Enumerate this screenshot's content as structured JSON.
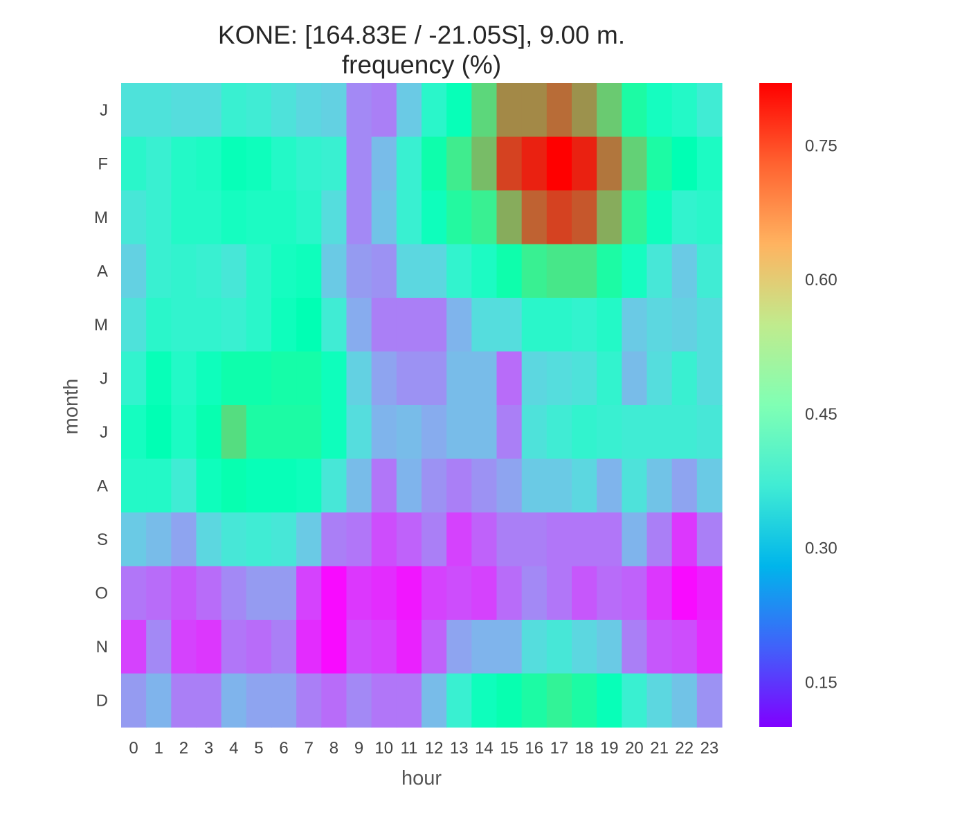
{
  "chart_data": {
    "type": "heatmap",
    "title": "KONE: [164.83E / -21.05S], 9.00 m.",
    "subtitle": "frequency (%)",
    "xlabel": "hour",
    "ylabel": "month",
    "x_categories": [
      "0",
      "1",
      "2",
      "3",
      "4",
      "5",
      "6",
      "7",
      "8",
      "9",
      "10",
      "11",
      "12",
      "13",
      "14",
      "15",
      "16",
      "17",
      "18",
      "19",
      "20",
      "21",
      "22",
      "23"
    ],
    "y_categories": [
      "J",
      "F",
      "M",
      "A",
      "M",
      "J",
      "J",
      "A",
      "S",
      "O",
      "N",
      "D"
    ],
    "colorbar": {
      "colormap": "rainbow",
      "range": [
        0.1,
        0.82
      ],
      "ticks": [
        0.15,
        0.3,
        0.45,
        0.6,
        0.75
      ],
      "tick_labels": [
        "0.15",
        "0.30",
        "0.45",
        "0.60",
        "0.75"
      ]
    },
    "values": [
      [
        0.35,
        0.35,
        0.34,
        0.34,
        0.38,
        0.37,
        0.35,
        0.33,
        0.32,
        0.23,
        0.22,
        0.31,
        0.4,
        0.45,
        0.59,
        0.69,
        0.69,
        0.72,
        0.68,
        0.61,
        0.5,
        0.43,
        0.41,
        0.37
      ],
      [
        0.4,
        0.38,
        0.41,
        0.42,
        0.45,
        0.44,
        0.41,
        0.39,
        0.38,
        0.23,
        0.29,
        0.38,
        0.48,
        0.55,
        0.63,
        0.76,
        0.79,
        0.82,
        0.79,
        0.71,
        0.6,
        0.5,
        0.46,
        0.42
      ],
      [
        0.36,
        0.38,
        0.41,
        0.41,
        0.43,
        0.42,
        0.42,
        0.4,
        0.34,
        0.23,
        0.3,
        0.38,
        0.44,
        0.51,
        0.54,
        0.65,
        0.73,
        0.76,
        0.74,
        0.65,
        0.53,
        0.44,
        0.39,
        0.4
      ],
      [
        0.32,
        0.38,
        0.39,
        0.38,
        0.36,
        0.4,
        0.43,
        0.44,
        0.31,
        0.25,
        0.24,
        0.33,
        0.33,
        0.39,
        0.42,
        0.48,
        0.54,
        0.56,
        0.56,
        0.5,
        0.43,
        0.36,
        0.31,
        0.37
      ],
      [
        0.35,
        0.4,
        0.39,
        0.39,
        0.38,
        0.4,
        0.44,
        0.46,
        0.37,
        0.27,
        0.22,
        0.22,
        0.22,
        0.28,
        0.34,
        0.34,
        0.4,
        0.4,
        0.39,
        0.41,
        0.31,
        0.33,
        0.32,
        0.34
      ],
      [
        0.39,
        0.45,
        0.41,
        0.44,
        0.48,
        0.48,
        0.49,
        0.49,
        0.44,
        0.32,
        0.26,
        0.24,
        0.24,
        0.29,
        0.29,
        0.2,
        0.33,
        0.34,
        0.35,
        0.39,
        0.29,
        0.34,
        0.38,
        0.34
      ],
      [
        0.43,
        0.46,
        0.42,
        0.47,
        0.58,
        0.5,
        0.5,
        0.5,
        0.44,
        0.34,
        0.28,
        0.29,
        0.27,
        0.29,
        0.29,
        0.22,
        0.35,
        0.37,
        0.39,
        0.38,
        0.37,
        0.37,
        0.37,
        0.36
      ],
      [
        0.41,
        0.41,
        0.37,
        0.44,
        0.47,
        0.45,
        0.45,
        0.44,
        0.36,
        0.29,
        0.21,
        0.28,
        0.24,
        0.22,
        0.24,
        0.26,
        0.31,
        0.31,
        0.33,
        0.28,
        0.35,
        0.3,
        0.26,
        0.31
      ],
      [
        0.31,
        0.29,
        0.26,
        0.33,
        0.36,
        0.37,
        0.36,
        0.31,
        0.22,
        0.21,
        0.17,
        0.19,
        0.22,
        0.16,
        0.19,
        0.22,
        0.22,
        0.21,
        0.21,
        0.21,
        0.28,
        0.22,
        0.15,
        0.22
      ],
      [
        0.21,
        0.2,
        0.18,
        0.2,
        0.23,
        0.25,
        0.25,
        0.16,
        0.11,
        0.15,
        0.14,
        0.12,
        0.16,
        0.17,
        0.16,
        0.2,
        0.23,
        0.21,
        0.18,
        0.2,
        0.19,
        0.15,
        0.11,
        0.13
      ],
      [
        0.16,
        0.23,
        0.16,
        0.15,
        0.21,
        0.2,
        0.22,
        0.14,
        0.11,
        0.17,
        0.16,
        0.13,
        0.19,
        0.26,
        0.28,
        0.28,
        0.34,
        0.36,
        0.33,
        0.31,
        0.22,
        0.18,
        0.17,
        0.14
      ],
      [
        0.25,
        0.28,
        0.22,
        0.22,
        0.28,
        0.26,
        0.26,
        0.22,
        0.2,
        0.23,
        0.21,
        0.21,
        0.29,
        0.38,
        0.44,
        0.47,
        0.5,
        0.53,
        0.5,
        0.45,
        0.38,
        0.33,
        0.3,
        0.24
      ]
    ]
  }
}
